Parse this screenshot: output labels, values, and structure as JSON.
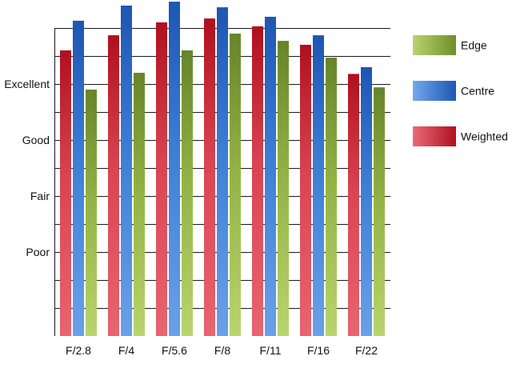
{
  "chart_data": {
    "type": "bar",
    "title": "",
    "xlabel": "",
    "ylabel": "",
    "categories": [
      "F/2.8",
      "F/4",
      "F/5.6",
      "F/8",
      "F/11",
      "F/16",
      "F/22"
    ],
    "y_tick_labels": [
      {
        "label": "Poor",
        "value": 1
      },
      {
        "label": "Fair",
        "value": 2
      },
      {
        "label": "Good",
        "value": 3
      },
      {
        "label": "Excellent",
        "value": 4
      }
    ],
    "ylim": [
      -0.5,
      5.5
    ],
    "grid": true,
    "legend_position": "right",
    "series": [
      {
        "name": "Weighted",
        "values": [
          4.6,
          4.87,
          5.1,
          5.17,
          5.03,
          4.7,
          4.18
        ],
        "color": "#c8202e",
        "color_light": "#e86470"
      },
      {
        "name": "Centre",
        "values": [
          5.13,
          5.4,
          5.47,
          5.37,
          5.2,
          4.87,
          4.3
        ],
        "color": "#2360bf",
        "color_light": "#6aa0ea"
      },
      {
        "name": "Edge",
        "values": [
          3.9,
          4.2,
          4.6,
          4.9,
          4.77,
          4.47,
          3.94
        ],
        "color": "#6f8f2a",
        "color_light": "#b6d26c"
      }
    ],
    "legend": [
      {
        "name": "Edge",
        "color": "#8fb23c"
      },
      {
        "name": "Centre",
        "color": "#3b7fd4"
      },
      {
        "name": "Weighted",
        "color": "#d63a46"
      }
    ]
  }
}
